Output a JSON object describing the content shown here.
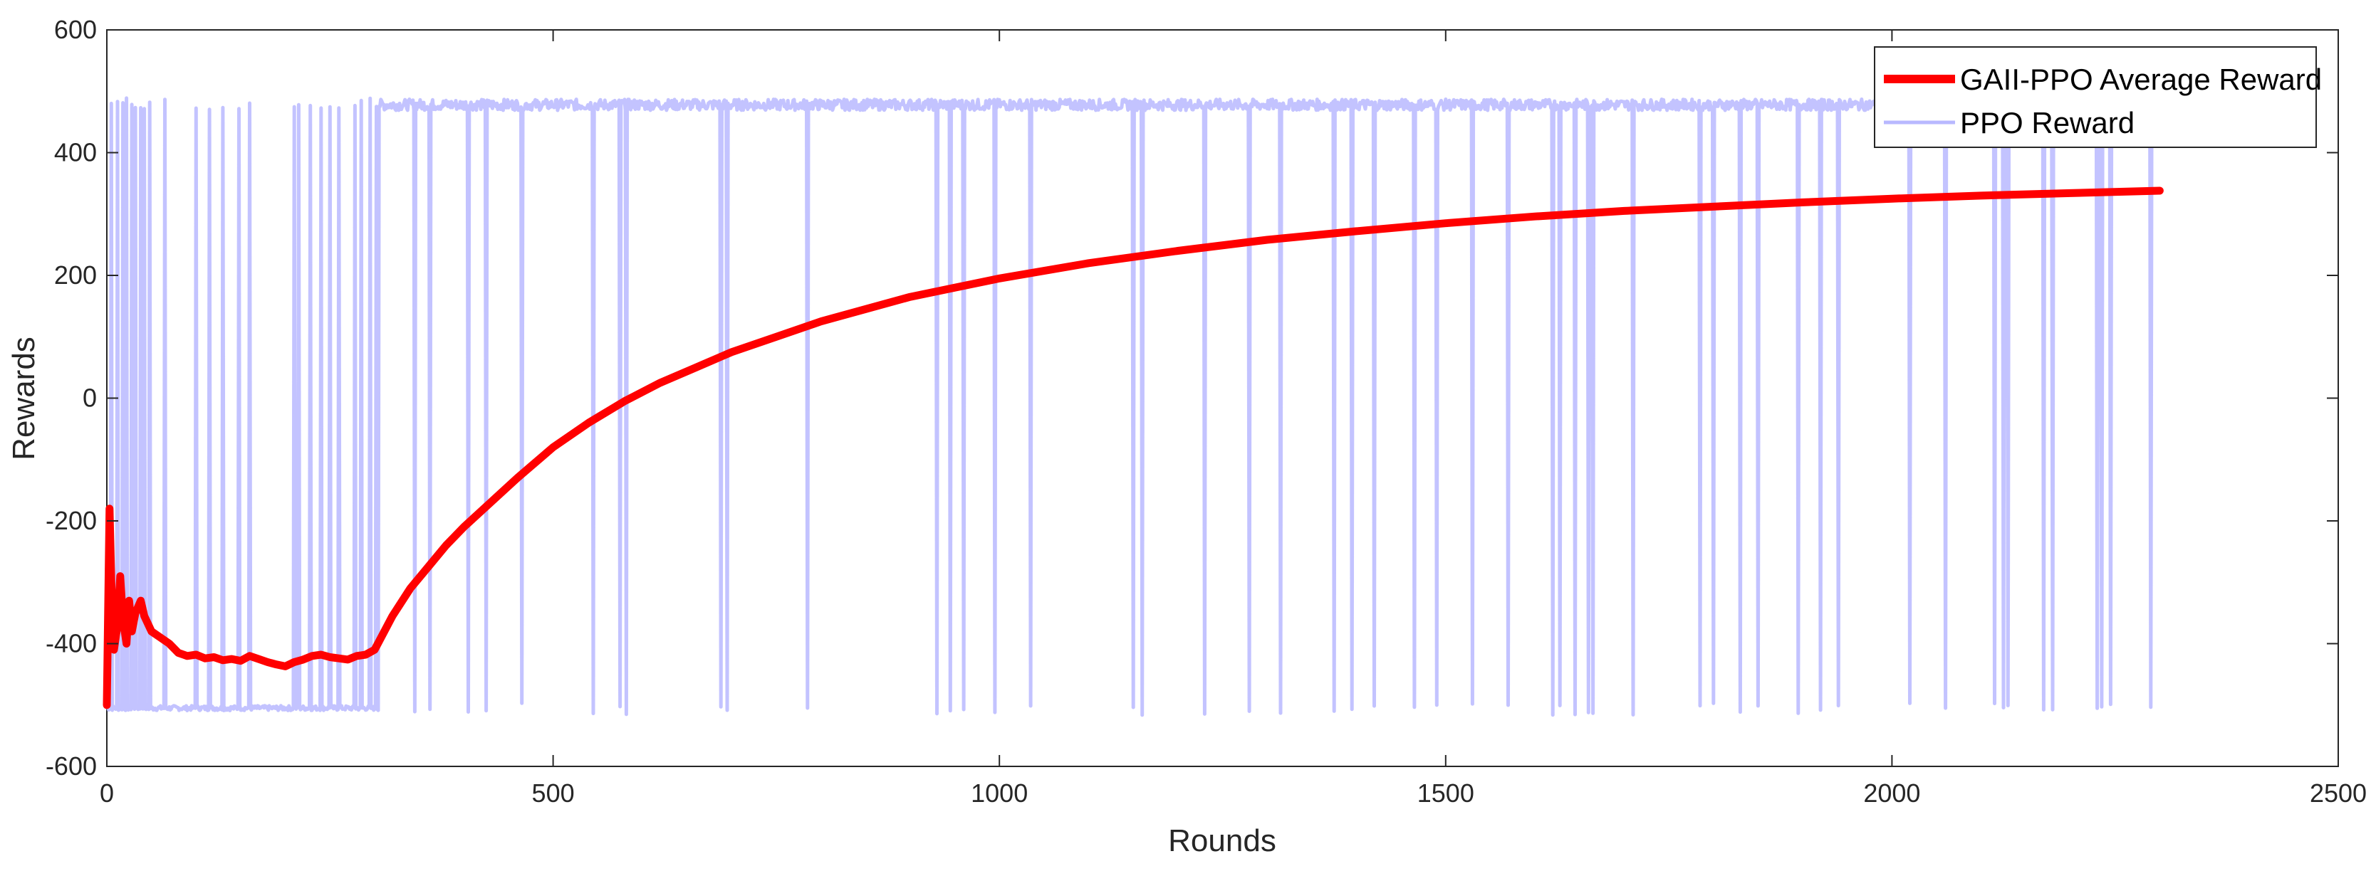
{
  "chart_data": {
    "type": "line",
    "xlabel": "Rounds",
    "ylabel": "Rewards",
    "xlim": [
      0,
      2500
    ],
    "ylim": [
      -600,
      600
    ],
    "x_ticks": [
      0,
      500,
      1000,
      1500,
      2000,
      2500
    ],
    "y_ticks": [
      -600,
      -400,
      -200,
      0,
      200,
      400,
      600
    ],
    "x_tick_labels": [
      "0",
      "500",
      "1000",
      "1500",
      "2000",
      "2500"
    ],
    "y_tick_labels": [
      "-600",
      "-400",
      "-200",
      "0",
      "200",
      "400",
      "600"
    ],
    "grid": false,
    "legend_position": "top-right",
    "series": [
      {
        "name": "GAII-PPO Average Reward",
        "color": "#ff0000",
        "x": [
          0,
          3,
          5,
          8,
          12,
          15,
          18,
          22,
          25,
          28,
          32,
          35,
          38,
          42,
          50,
          60,
          70,
          80,
          90,
          100,
          110,
          120,
          130,
          140,
          150,
          160,
          170,
          180,
          190,
          200,
          210,
          220,
          230,
          240,
          250,
          260,
          270,
          280,
          290,
          300,
          320,
          340,
          360,
          380,
          400,
          430,
          460,
          500,
          540,
          580,
          620,
          660,
          700,
          750,
          800,
          850,
          900,
          950,
          1000,
          1100,
          1200,
          1300,
          1400,
          1500,
          1600,
          1700,
          1800,
          1900,
          2000,
          2100,
          2200,
          2300
        ],
        "values": [
          -500,
          -180,
          -300,
          -410,
          -370,
          -290,
          -360,
          -400,
          -330,
          -380,
          -350,
          -340,
          -330,
          -355,
          -380,
          -390,
          -400,
          -415,
          -420,
          -418,
          -424,
          -422,
          -427,
          -425,
          -428,
          -420,
          -425,
          -430,
          -434,
          -437,
          -430,
          -426,
          -420,
          -418,
          -422,
          -424,
          -426,
          -420,
          -418,
          -410,
          -355,
          -310,
          -275,
          -240,
          -210,
          -170,
          -130,
          -80,
          -40,
          -5,
          25,
          50,
          75,
          100,
          125,
          145,
          165,
          180,
          195,
          220,
          240,
          258,
          272,
          285,
          296,
          305,
          312,
          319,
          325,
          330,
          334,
          338
        ]
      },
      {
        "name": "PPO Reward",
        "color": "#b8b8ff",
        "upper_level": 478,
        "lower_level": -505,
        "drop_rounds": [
          345,
          362,
          405,
          425,
          465,
          545,
          575,
          582,
          688,
          695,
          785,
          930,
          945,
          960,
          995,
          1035,
          1150,
          1160,
          1230,
          1280,
          1315,
          1375,
          1395,
          1420,
          1465,
          1490,
          1530,
          1570,
          1620,
          1628,
          1645,
          1660,
          1665,
          1710,
          1785,
          1800,
          1830,
          1850,
          1895,
          1920,
          1940,
          2020,
          2060,
          2115,
          2125,
          2130,
          2170,
          2180,
          2230,
          2235,
          2245,
          2290
        ],
        "rise_rounds_early": [
          5,
          12,
          18,
          22,
          28,
          32,
          38,
          42,
          48,
          65,
          100,
          115,
          130,
          148,
          160,
          210,
          215,
          228,
          240,
          250,
          260,
          278,
          285,
          295,
          302
        ]
      }
    ]
  }
}
